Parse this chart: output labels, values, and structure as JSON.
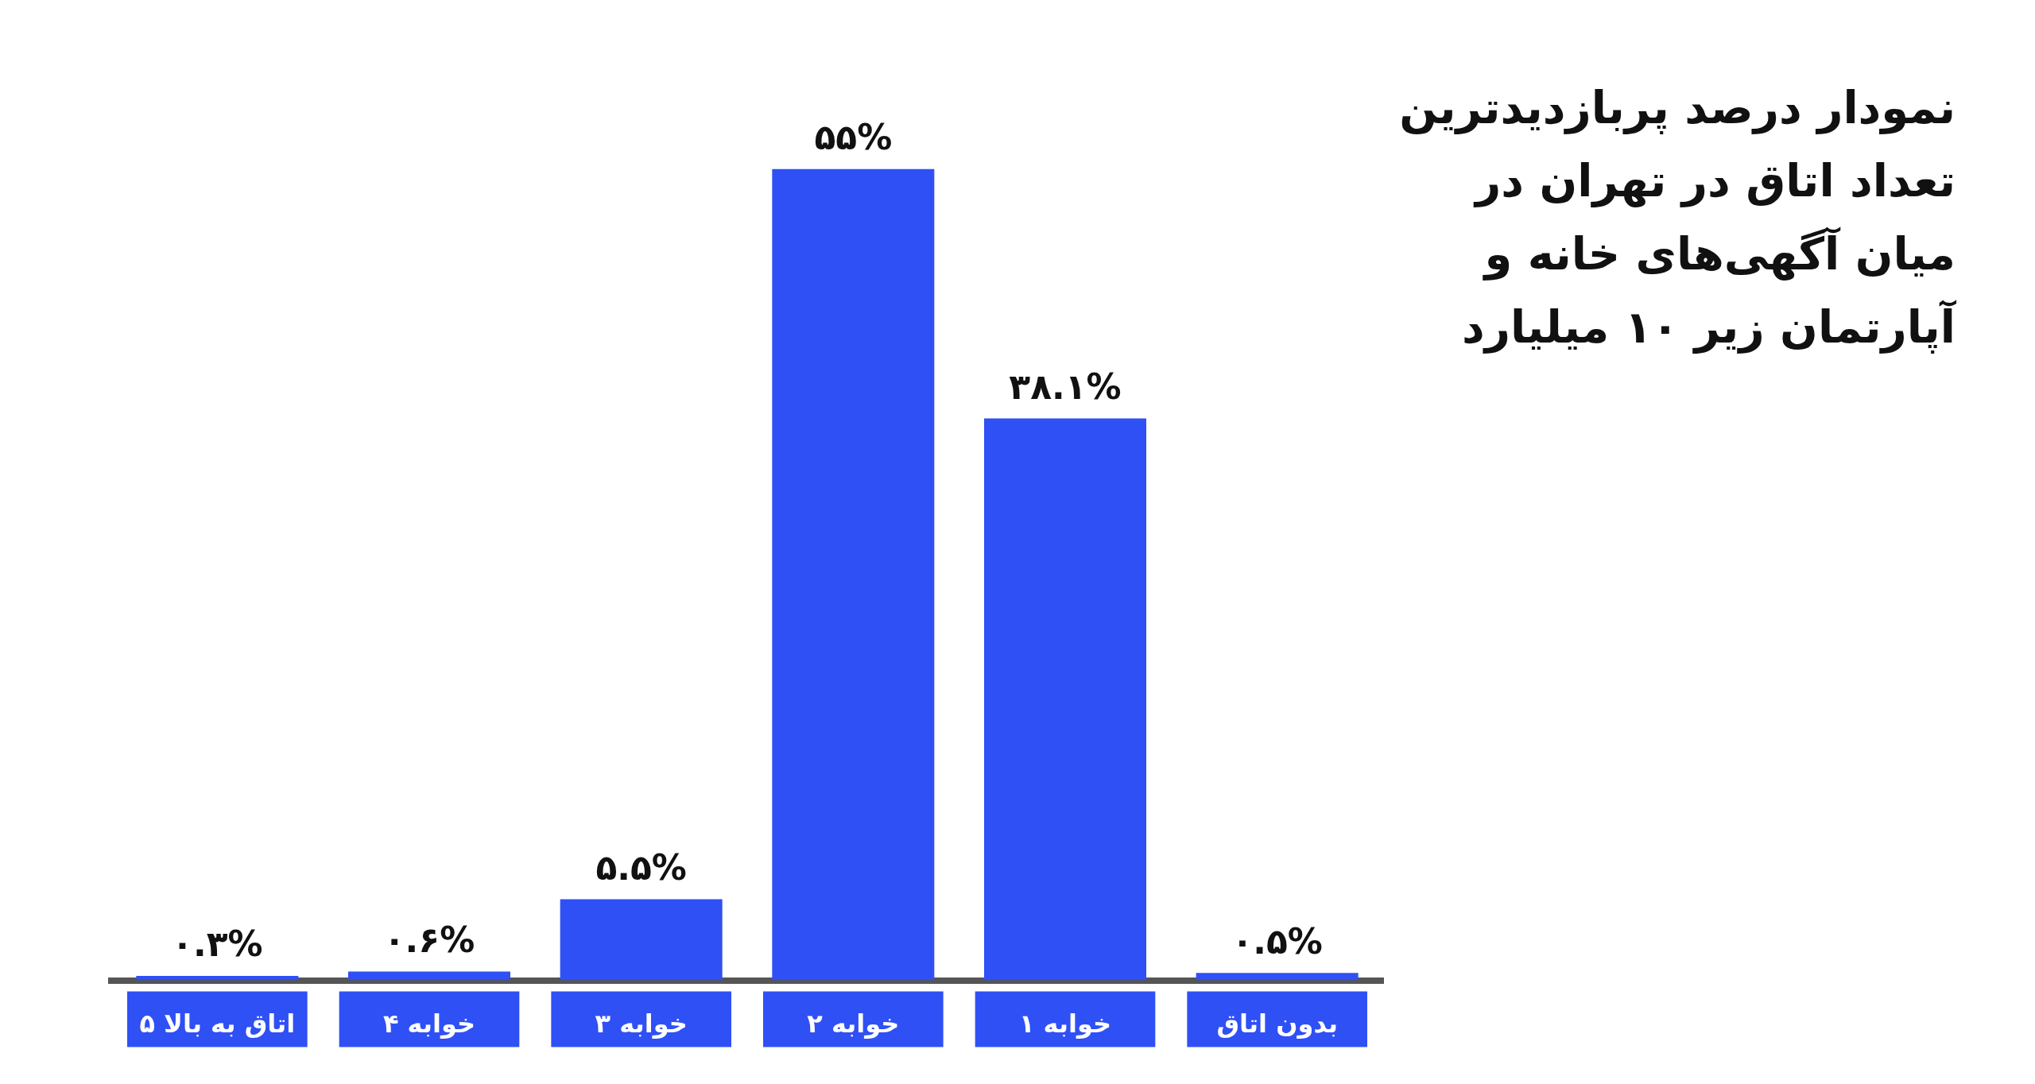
{
  "chart_data": {
    "type": "bar",
    "title": "نمودار درصد پربازدیدترین تعداد اتاق در تهران در میان آگهی‌های خانه و آپارتمان زیر ۱۰ میلیارد",
    "categories": [
      "۵ اتاق به بالا",
      "۴ خوابه",
      "۳ خوابه",
      "۲ خوابه",
      "۱ خوابه",
      "بدون اتاق"
    ],
    "values": [
      0.3,
      0.6,
      5.5,
      55,
      38.1,
      0.5
    ],
    "value_labels": [
      "۰.۳%",
      "۰.۶%",
      "۵.۵%",
      "۵۵%",
      "۳۸.۱%",
      "۰.۵%"
    ],
    "color": "#2f50f5",
    "grid": false,
    "legend": false
  }
}
